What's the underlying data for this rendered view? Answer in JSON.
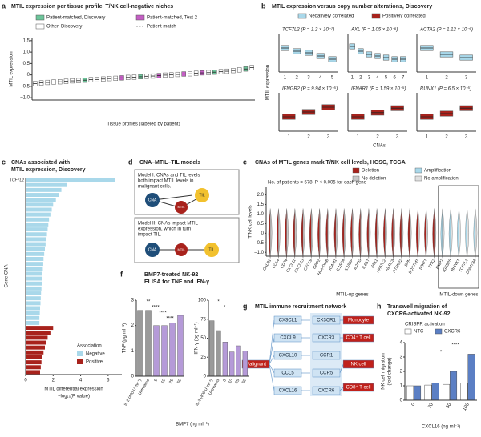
{
  "chart_data": [
    {
      "type": "box",
      "label": "a",
      "title": "MTIL expression per tissue profile, T/NK cell-negative niches",
      "ylabel": "MTIL expression",
      "xlabel": "Tissue profiles (labeled by patient)",
      "legend": [
        {
          "name": "Patient-matched, Discovery",
          "color": "#6cc59a"
        },
        {
          "name": "Patient-matched, Test 2",
          "color": "#c45ec4"
        },
        {
          "name": "Other, Discovery",
          "color": "#ffffff"
        },
        {
          "name": "Patient match",
          "color": "#999999",
          "dashed": true
        }
      ],
      "categories": [
        null,
        null,
        null,
        null,
        null,
        null,
        null,
        null,
        null,
        null,
        null,
        null,
        null,
        null,
        null,
        null,
        null,
        null,
        null,
        null,
        null,
        null,
        null,
        null,
        null,
        null,
        null,
        null,
        null,
        null,
        null,
        null,
        null,
        null,
        null,
        null
      ],
      "median": [
        -0.38,
        -0.35,
        -0.33,
        -0.31,
        -0.3,
        -0.28,
        -0.26,
        -0.25,
        -0.23,
        -0.21,
        -0.2,
        -0.18,
        -0.16,
        -0.15,
        -0.13,
        -0.11,
        -0.1,
        -0.08,
        -0.06,
        -0.05,
        -0.03,
        -0.01,
        0,
        0.02,
        0.04,
        0.05,
        0.07,
        0.09,
        0.1,
        0.12,
        0.14,
        0.16,
        0.19,
        0.22,
        0.26,
        0.32
      ],
      "q1": [
        -0.48,
        -0.45,
        -0.43,
        -0.41,
        -0.4,
        -0.38,
        -0.36,
        -0.35,
        -0.33,
        -0.31,
        -0.3,
        -0.28,
        -0.26,
        -0.25,
        -0.23,
        -0.21,
        -0.2,
        -0.18,
        -0.16,
        -0.15,
        -0.13,
        -0.11,
        -0.1,
        -0.08,
        -0.06,
        -0.05,
        -0.03,
        -0.01,
        0,
        0.02,
        0.04,
        0.06,
        0.09,
        0.12,
        0.16,
        0.22
      ],
      "q3": [
        -0.28,
        -0.25,
        -0.23,
        -0.21,
        -0.2,
        -0.18,
        -0.16,
        -0.15,
        -0.13,
        -0.11,
        -0.1,
        -0.08,
        -0.06,
        -0.05,
        -0.03,
        -0.01,
        0,
        0.02,
        0.04,
        0.05,
        0.07,
        0.09,
        0.1,
        0.12,
        0.14,
        0.15,
        0.17,
        0.19,
        0.2,
        0.22,
        0.24,
        0.26,
        0.29,
        0.32,
        0.36,
        0.42
      ],
      "groups": [
        2,
        2,
        2,
        2,
        2,
        2,
        2,
        2,
        0,
        2,
        2,
        2,
        2,
        2,
        1,
        2,
        2,
        0,
        2,
        2,
        1,
        2,
        2,
        2,
        1,
        2,
        2,
        1,
        2,
        0,
        2,
        2,
        2,
        2,
        0,
        2
      ],
      "ylim": [
        -1.1,
        1.6
      ],
      "yticks": [
        {
          "value": -1,
          "label": "–1.0"
        },
        {
          "value": -0.5,
          "label": "–0.5"
        },
        0,
        {
          "value": 0.5,
          "label": "0.5"
        },
        {
          "value": 1,
          "label": "1.0"
        },
        {
          "value": 1.5,
          "label": "1.5"
        }
      ]
    },
    {
      "type": "box",
      "label": "b",
      "title": "MTIL expression versus copy number alterations, Discovery",
      "ylabel": "MTIL expression",
      "xlabel": "CNAs",
      "ylim": [
        -0.6,
        0.6
      ],
      "legend": [
        {
          "name": "Negatively correlated",
          "color": "#a9d8ea"
        },
        {
          "name": "Positively correlated",
          "color": "#a8221c"
        }
      ],
      "subplots": [
        {
          "title": "TCF7L2 (P = 1.2 × 10⁻⁷)",
          "legend_index": 0,
          "categories": [
            "1",
            "2",
            "3",
            "4",
            "5"
          ],
          "median": [
            0.15,
            0.05,
            0,
            -0.1,
            -0.2
          ],
          "q1": [
            0.07,
            -0.03,
            -0.08,
            -0.18,
            -0.28
          ],
          "q3": [
            0.23,
            0.13,
            0.08,
            -0.02,
            -0.12
          ]
        },
        {
          "title": "AXL (P = 1.05 × 10⁻⁶)",
          "legend_index": 0,
          "categories": [
            "1",
            "2",
            "3",
            "4",
            "5",
            "6",
            "7"
          ],
          "median": [
            0.2,
            0.05,
            -0.05,
            -0.1,
            -0.15,
            -0.2,
            -0.2
          ],
          "q1": [
            0.12,
            -0.03,
            -0.13,
            -0.18,
            -0.23,
            -0.28,
            -0.28
          ],
          "q3": [
            0.28,
            0.13,
            0.03,
            -0.02,
            -0.07,
            -0.12,
            -0.12
          ]
        },
        {
          "title": "ACTA2 (P = 1.12 × 10⁻⁶)",
          "legend_index": 0,
          "categories": [
            "1",
            "2",
            "3"
          ],
          "median": [
            0.15,
            -0.05,
            -0.15
          ],
          "q1": [
            0.07,
            -0.13,
            -0.23
          ],
          "q3": [
            0.23,
            0.03,
            -0.07
          ]
        },
        {
          "title": "IFNGR2 (P = 9.94 × 10⁻⁵)",
          "legend_index": 1,
          "categories": [
            "1",
            "2",
            "3"
          ],
          "median": [
            -0.15,
            0,
            0.15
          ],
          "q1": [
            -0.23,
            -0.08,
            0.07
          ],
          "q3": [
            -0.07,
            0.08,
            0.23
          ]
        },
        {
          "title": "IFNAR1 (P = 1.59 × 10⁻⁵)",
          "legend_index": 1,
          "categories": [
            "1",
            "2",
            "3"
          ],
          "median": [
            -0.15,
            -0.02,
            0.12
          ],
          "q1": [
            -0.23,
            -0.1,
            0.04
          ],
          "q3": [
            -0.07,
            0.06,
            0.2
          ]
        },
        {
          "title": "RUNX1 (P = 6.5 × 10⁻⁵)",
          "legend_index": 1,
          "categories": [
            "1",
            "2",
            "3"
          ],
          "median": [
            -0.15,
            -0.05,
            0.12
          ],
          "q1": [
            -0.23,
            -0.13,
            0.04
          ],
          "q3": [
            -0.07,
            0.03,
            0.2
          ]
        }
      ]
    },
    {
      "type": "bar",
      "horizontal": true,
      "label": "c",
      "title": [
        "CNAs associated with",
        "MTIL expression, Discovery"
      ],
      "ylabel": "Gene CNA",
      "xlabel": [
        "MTIL differential expression",
        "−log₁₀(P value)"
      ],
      "legend_title": "Association",
      "legend": [
        {
          "name": "Negative",
          "color": "#a9d8ea"
        },
        {
          "name": "Positive",
          "color": "#a8221c"
        }
      ],
      "categories": [
        "TCF7L2",
        null,
        null,
        null,
        null,
        null,
        null,
        null,
        null,
        null,
        null,
        null,
        null,
        null,
        null,
        null,
        null,
        null,
        null,
        null,
        null,
        null,
        null,
        null,
        null,
        null,
        null,
        null,
        null,
        null,
        null,
        null,
        null,
        null,
        null,
        null,
        null,
        null,
        null,
        null
      ],
      "values": [
        6.5,
        3.0,
        2.6,
        2.4,
        2.2,
        2.0,
        1.9,
        1.8,
        1.7,
        1.65,
        1.6,
        1.55,
        1.5,
        1.45,
        1.4,
        1.35,
        1.3,
        1.28,
        1.25,
        1.22,
        1.2,
        1.18,
        1.15,
        1.12,
        1.1,
        1.08,
        1.05,
        1.03,
        1.0,
        1.0,
        2.0,
        1.8,
        1.6,
        1.5,
        1.4,
        1.3,
        1.2,
        1.15,
        1.1,
        1.05
      ],
      "groups": [
        0,
        0,
        0,
        0,
        0,
        0,
        0,
        0,
        0,
        0,
        0,
        0,
        0,
        0,
        0,
        0,
        0,
        0,
        0,
        0,
        0,
        0,
        0,
        0,
        0,
        0,
        0,
        0,
        0,
        0,
        1,
        1,
        1,
        1,
        1,
        1,
        1,
        1,
        1,
        1
      ],
      "xlim": [
        0,
        7
      ],
      "xticks": [
        0,
        2,
        4,
        6
      ]
    },
    {
      "type": "violin",
      "label": "e",
      "title": "CNAs of MTIL genes mark T/NK cell levels, HGSC, TCGA",
      "ylabel": "T/NK cell levels",
      "annotation": "No. of patients = 578, P < 0.005 for each gene",
      "groups": [
        "MTIL-up genes",
        "MTIL-down genes"
      ],
      "categories": [
        "CALB1",
        "CCL4",
        "CD74",
        "CXCL11",
        "CXCL13",
        "CXCL9",
        "GBP2",
        "HLA-DMB",
        "ICAM1",
        "IL15RA",
        "IL18BP",
        "IL2RG",
        "IL6ST",
        "JAK1",
        "NFATC2",
        "NLRC5",
        "PTPN22",
        "SPN",
        "SQSTM1",
        "STAT1",
        "TYK2",
        "BMP7",
        "IGFBP5",
        "RUNX1",
        "TCF7L2",
        "DNMT3A"
      ],
      "series": [
        {
          "name": "Deletion",
          "color": "#a8221c",
          "values": [
            -0.05,
            -0.04,
            -0.06,
            -0.05,
            -0.04,
            -0.05,
            -0.06,
            -0.04,
            -0.05,
            -0.05,
            -0.04,
            -0.06,
            -0.05,
            -0.04,
            -0.05,
            -0.06,
            -0.05,
            -0.04,
            -0.05,
            -0.05,
            -0.04,
            null,
            null,
            null,
            null,
            null
          ]
        },
        {
          "name": "No deletion",
          "color": "#c8c8c8",
          "values": [
            0.03,
            0.03,
            0.03,
            0.03,
            0.03,
            0.03,
            0.03,
            0.03,
            0.03,
            0.03,
            0.03,
            0.03,
            0.03,
            0.03,
            0.03,
            0.03,
            0.03,
            0.03,
            0.03,
            0.03,
            0.03,
            null,
            null,
            null,
            null,
            null
          ]
        },
        {
          "name": "Amplification",
          "color": "#a9d8ea",
          "values": [
            null,
            null,
            null,
            null,
            null,
            null,
            null,
            null,
            null,
            null,
            null,
            null,
            null,
            null,
            null,
            null,
            null,
            null,
            null,
            null,
            null,
            -0.04,
            -0.03,
            -0.04,
            -0.03,
            -0.04
          ]
        },
        {
          "name": "No amplification",
          "color": "#e0e0e0",
          "values": [
            null,
            null,
            null,
            null,
            null,
            null,
            null,
            null,
            null,
            null,
            null,
            null,
            null,
            null,
            null,
            null,
            null,
            null,
            null,
            null,
            null,
            0.02,
            0.02,
            0.02,
            0.02,
            0.02
          ]
        }
      ],
      "ylim": [
        -1.2,
        2.4
      ],
      "yticks": [
        {
          "value": -1,
          "label": "–1.0"
        },
        {
          "value": -0.5,
          "label": "–0.5"
        },
        0,
        {
          "value": 0.5,
          "label": "0.5"
        },
        {
          "value": 1,
          "label": "1.0"
        },
        {
          "value": 1.5,
          "label": "1.5"
        },
        {
          "value": 2,
          "label": "2.0"
        }
      ]
    },
    {
      "type": "bar",
      "label": "f",
      "title": [
        "BMP7-treated NK-92",
        "ELISA for TNF and IFN-γ"
      ],
      "xlabel": "BMP7 (ng ml⁻¹)",
      "subplots": [
        {
          "ylabel": "TNF (pg ml⁻¹)",
          "categories": [
            "IL-2 (400 U ml⁻¹)",
            "Untreated",
            "5",
            "10",
            "25",
            "50"
          ],
          "values": [
            2.6,
            2.6,
            2.0,
            2.0,
            2.1,
            2.4
          ],
          "colors": [
            "#9a9a9a",
            "#9a9a9a",
            "#b59ad8",
            "#b59ad8",
            "#b59ad8",
            "#b59ad8"
          ],
          "ylim": [
            0,
            3
          ],
          "yticks": [
            0,
            1,
            2,
            3
          ],
          "annotations": [
            "**",
            "****",
            "****",
            "****"
          ]
        },
        {
          "ylabel": "IFN-γ (pg ml⁻¹)",
          "categories": [
            "IL-2 (400 U ml⁻¹)",
            "Untreated",
            "5",
            "10",
            "25",
            "50"
          ],
          "values": [
            73,
            60,
            45,
            32,
            40,
            33
          ],
          "colors": [
            "#9a9a9a",
            "#9a9a9a",
            "#b59ad8",
            "#b59ad8",
            "#b59ad8",
            "#b59ad8"
          ],
          "ylim": [
            0,
            100
          ],
          "yticks": [
            0,
            25,
            50,
            75,
            100
          ],
          "annotations": [
            "*",
            "*"
          ]
        }
      ]
    },
    {
      "type": "bar",
      "label": "h",
      "title": [
        "Transwell migration of",
        "CXCR6-activated NK-92"
      ],
      "legend_title": "CRISPR activation",
      "ylabel": [
        "NK cell migration",
        "(fold change)"
      ],
      "xlabel": "CXCL16 (ng ml⁻¹)",
      "categories": [
        "0",
        "20",
        "50",
        "100"
      ],
      "series": [
        {
          "name": "NTC",
          "color": "#ffffff",
          "values": [
            1.0,
            1.05,
            1.1,
            1.2
          ]
        },
        {
          "name": "CXCR6",
          "color": "#5b7fc4",
          "values": [
            1.0,
            1.2,
            2.0,
            3.2
          ]
        }
      ],
      "ylim": [
        0,
        4
      ],
      "yticks": [
        0,
        1,
        2,
        3,
        4
      ],
      "annotations": [
        "*",
        "****"
      ]
    }
  ],
  "diagrams": {
    "d": {
      "label": "d",
      "title": "CNA–MTIL–TIL models",
      "model_1": [
        "Model I: CNAs and TIL levels",
        "both impact MTIL levels in",
        "malignant cells."
      ],
      "model_2": [
        "Model II: CNAs impact MTIL",
        "expression, which in turn",
        "impact TIL."
      ],
      "nodes": [
        "CNA",
        "TIL",
        "MTIL"
      ]
    },
    "g": {
      "label": "g",
      "title": "MTIL immune recruitment network",
      "source": "Malignant",
      "ligands": [
        "CX3CL1",
        "CXCL9",
        "CXCL10",
        "CCL5",
        "CXCL16"
      ],
      "receptors": [
        "CX3CR1",
        "CXCR3",
        "CCR1",
        "CCR5",
        "CXCR6"
      ],
      "cells": [
        "Monocyte",
        "CD4⁺ T cell",
        "NK cell",
        "CD8⁺ T cell"
      ]
    }
  }
}
